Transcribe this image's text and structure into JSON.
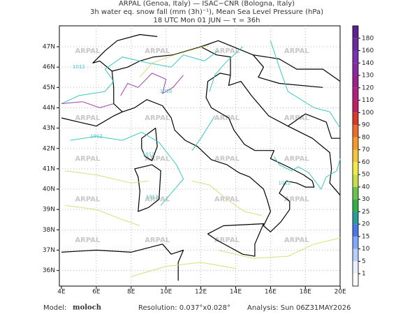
{
  "header": {
    "lines": [
      "ARPAL (Genoa, Italy)  —  ISAC−CNR (Bologna, Italy)",
      "3h water eq. snow fall (mm (3h)⁻¹), Mean Sea Level Pressure (hPa)",
      "18 UTC Mon 01 JUN  —  τ = 36h"
    ]
  },
  "map": {
    "x_labels": [
      "4E",
      "6E",
      "8E",
      "10E",
      "12E",
      "14E",
      "16E",
      "18E",
      "20E"
    ],
    "y_labels": [
      "47N",
      "46N",
      "45N",
      "44N",
      "43N",
      "42N",
      "41N",
      "40N",
      "39N",
      "38N",
      "37N",
      "36N"
    ],
    "watermark": "ARPAL",
    "contour_labels": [
      "1012",
      "1010",
      "1012",
      "1012",
      "1012",
      "1012"
    ]
  },
  "colorbar": {
    "labels": [
      1,
      5,
      10,
      15,
      20,
      25,
      30,
      40,
      50,
      60,
      70,
      80,
      90,
      100,
      110,
      120,
      130,
      140,
      160,
      180
    ]
  },
  "footer": {
    "model_label": "Model:",
    "model": "moloch",
    "resolution": "Resolution: 0.037°x0.028°",
    "analysis": "Analysis: Sun 06Z31MAY2026"
  }
}
